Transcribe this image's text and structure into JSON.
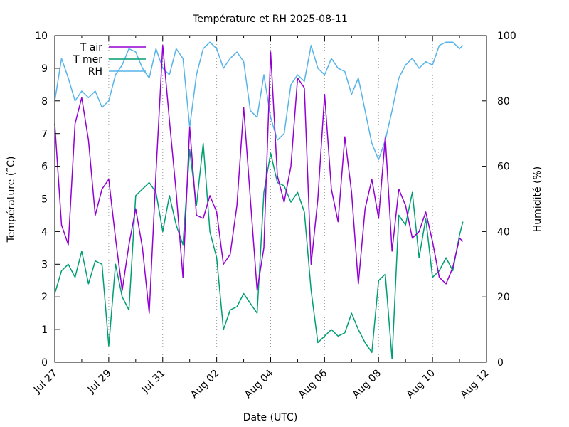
{
  "chart_data": {
    "type": "line",
    "title": "Température et RH 2025-08-11",
    "xlabel": "Date (UTC)",
    "ylabel": "Température (˜C)",
    "y2label": "Humidité (%)",
    "xlim": [
      "2025-07-27",
      "2025-08-12"
    ],
    "ylim": [
      0,
      10
    ],
    "y2lim": [
      0,
      100
    ],
    "grid": "vertical dotted lines at x ticks",
    "legend_placement": "top-left",
    "x_tick_labels": [
      "Jul 27",
      "Jul 29",
      "Jul 31",
      "Aug 02",
      "Aug 04",
      "Aug 06",
      "Aug 08",
      "Aug 10",
      "Aug 12"
    ],
    "y_tick_labels": [
      "0",
      "1",
      "2",
      "3",
      "4",
      "5",
      "6",
      "7",
      "8",
      "9",
      "10"
    ],
    "y2_tick_labels": [
      "0",
      "20",
      "40",
      "60",
      "80",
      "100"
    ],
    "series": [
      {
        "name": "T air",
        "axis": "left",
        "color": "#9400d3",
        "points": [
          [
            "2025-07-27 00:00",
            7.3
          ],
          [
            "2025-07-27 06:00",
            4.2
          ],
          [
            "2025-07-27 12:00",
            3.6
          ],
          [
            "2025-07-27 18:00",
            7.3
          ],
          [
            "2025-07-28 00:00",
            8.1
          ],
          [
            "2025-07-28 06:00",
            6.8
          ],
          [
            "2025-07-28 12:00",
            4.5
          ],
          [
            "2025-07-28 18:00",
            5.3
          ],
          [
            "2025-07-29 00:00",
            5.6
          ],
          [
            "2025-07-29 06:00",
            3.8
          ],
          [
            "2025-07-29 12:00",
            2.2
          ],
          [
            "2025-07-29 18:00",
            3.6
          ],
          [
            "2025-07-30 00:00",
            4.7
          ],
          [
            "2025-07-30 06:00",
            3.5
          ],
          [
            "2025-07-30 12:00",
            1.5
          ],
          [
            "2025-07-30 18:00",
            5.8
          ],
          [
            "2025-07-31 00:00",
            9.7
          ],
          [
            "2025-07-31 06:00",
            7.4
          ],
          [
            "2025-07-31 12:00",
            5.2
          ],
          [
            "2025-07-31 18:00",
            2.6
          ],
          [
            "2025-08-01 00:00",
            7.2
          ],
          [
            "2025-08-01 06:00",
            4.5
          ],
          [
            "2025-08-01 12:00",
            4.4
          ],
          [
            "2025-08-01 18:00",
            5.1
          ],
          [
            "2025-08-02 00:00",
            4.6
          ],
          [
            "2025-08-02 06:00",
            3.0
          ],
          [
            "2025-08-02 12:00",
            3.3
          ],
          [
            "2025-08-02 18:00",
            4.8
          ],
          [
            "2025-08-03 00:00",
            7.8
          ],
          [
            "2025-08-03 06:00",
            5.0
          ],
          [
            "2025-08-03 12:00",
            2.2
          ],
          [
            "2025-08-03 18:00",
            3.5
          ],
          [
            "2025-08-04 00:00",
            9.5
          ],
          [
            "2025-08-04 06:00",
            5.7
          ],
          [
            "2025-08-04 12:00",
            4.9
          ],
          [
            "2025-08-04 18:00",
            6.0
          ],
          [
            "2025-08-05 00:00",
            8.7
          ],
          [
            "2025-08-05 06:00",
            8.4
          ],
          [
            "2025-08-05 12:00",
            3.0
          ],
          [
            "2025-08-05 18:00",
            5.0
          ],
          [
            "2025-08-06 00:00",
            8.2
          ],
          [
            "2025-08-06 06:00",
            5.3
          ],
          [
            "2025-08-06 12:00",
            4.3
          ],
          [
            "2025-08-06 18:00",
            6.9
          ],
          [
            "2025-08-07 00:00",
            5.2
          ],
          [
            "2025-08-07 06:00",
            2.4
          ],
          [
            "2025-08-07 12:00",
            4.7
          ],
          [
            "2025-08-07 18:00",
            5.6
          ],
          [
            "2025-08-08 00:00",
            4.4
          ],
          [
            "2025-08-08 06:00",
            6.9
          ],
          [
            "2025-08-08 12:00",
            3.4
          ],
          [
            "2025-08-08 18:00",
            5.3
          ],
          [
            "2025-08-09 00:00",
            4.8
          ],
          [
            "2025-08-09 06:00",
            3.8
          ],
          [
            "2025-08-09 12:00",
            4.0
          ],
          [
            "2025-08-09 18:00",
            4.6
          ],
          [
            "2025-08-10 00:00",
            3.7
          ],
          [
            "2025-08-10 06:00",
            2.6
          ],
          [
            "2025-08-10 12:00",
            2.4
          ],
          [
            "2025-08-10 18:00",
            2.9
          ],
          [
            "2025-08-11 00:00",
            3.8
          ],
          [
            "2025-08-11 03:00",
            3.7
          ]
        ]
      },
      {
        "name": "T mer",
        "axis": "left",
        "color": "#009e73",
        "points": [
          [
            "2025-07-27 00:00",
            2.1
          ],
          [
            "2025-07-27 06:00",
            2.8
          ],
          [
            "2025-07-27 12:00",
            3.0
          ],
          [
            "2025-07-27 18:00",
            2.6
          ],
          [
            "2025-07-28 00:00",
            3.4
          ],
          [
            "2025-07-28 06:00",
            2.4
          ],
          [
            "2025-07-28 12:00",
            3.1
          ],
          [
            "2025-07-28 18:00",
            3.0
          ],
          [
            "2025-07-29 00:00",
            0.5
          ],
          [
            "2025-07-29 06:00",
            3.0
          ],
          [
            "2025-07-29 12:00",
            2.0
          ],
          [
            "2025-07-29 18:00",
            1.6
          ],
          [
            "2025-07-30 00:00",
            5.1
          ],
          [
            "2025-07-30 06:00",
            5.3
          ],
          [
            "2025-07-30 12:00",
            5.5
          ],
          [
            "2025-07-30 18:00",
            5.2
          ],
          [
            "2025-07-31 00:00",
            4.0
          ],
          [
            "2025-07-31 06:00",
            5.1
          ],
          [
            "2025-07-31 12:00",
            4.2
          ],
          [
            "2025-07-31 18:00",
            3.6
          ],
          [
            "2025-08-01 00:00",
            6.5
          ],
          [
            "2025-08-01 06:00",
            4.8
          ],
          [
            "2025-08-01 12:00",
            6.7
          ],
          [
            "2025-08-01 18:00",
            4.0
          ],
          [
            "2025-08-02 00:00",
            3.2
          ],
          [
            "2025-08-02 06:00",
            1.0
          ],
          [
            "2025-08-02 12:00",
            1.6
          ],
          [
            "2025-08-02 18:00",
            1.7
          ],
          [
            "2025-08-03 00:00",
            2.1
          ],
          [
            "2025-08-03 06:00",
            1.8
          ],
          [
            "2025-08-03 12:00",
            1.5
          ],
          [
            "2025-08-03 18:00",
            5.2
          ],
          [
            "2025-08-04 00:00",
            6.4
          ],
          [
            "2025-08-04 06:00",
            5.5
          ],
          [
            "2025-08-04 12:00",
            5.4
          ],
          [
            "2025-08-04 18:00",
            4.9
          ],
          [
            "2025-08-05 00:00",
            5.2
          ],
          [
            "2025-08-05 06:00",
            4.6
          ],
          [
            "2025-08-05 12:00",
            2.2
          ],
          [
            "2025-08-05 18:00",
            0.6
          ],
          [
            "2025-08-06 00:00",
            0.8
          ],
          [
            "2025-08-06 06:00",
            1.0
          ],
          [
            "2025-08-06 12:00",
            0.8
          ],
          [
            "2025-08-06 18:00",
            0.9
          ],
          [
            "2025-08-07 00:00",
            1.5
          ],
          [
            "2025-08-07 06:00",
            1.0
          ],
          [
            "2025-08-07 12:00",
            0.6
          ],
          [
            "2025-08-07 18:00",
            0.3
          ],
          [
            "2025-08-08 00:00",
            2.5
          ],
          [
            "2025-08-08 06:00",
            2.7
          ],
          [
            "2025-08-08 12:00",
            0.1
          ],
          [
            "2025-08-08 18:00",
            4.5
          ],
          [
            "2025-08-09 00:00",
            4.2
          ],
          [
            "2025-08-09 06:00",
            5.2
          ],
          [
            "2025-08-09 12:00",
            3.2
          ],
          [
            "2025-08-09 18:00",
            4.4
          ],
          [
            "2025-08-10 00:00",
            2.6
          ],
          [
            "2025-08-10 06:00",
            2.8
          ],
          [
            "2025-08-10 12:00",
            3.2
          ],
          [
            "2025-08-10 18:00",
            2.8
          ],
          [
            "2025-08-11 00:00",
            3.9
          ],
          [
            "2025-08-11 03:00",
            4.3
          ]
        ]
      },
      {
        "name": "RH",
        "axis": "right",
        "color": "#56b4e9",
        "points": [
          [
            "2025-07-27 00:00",
            80
          ],
          [
            "2025-07-27 06:00",
            93
          ],
          [
            "2025-07-27 12:00",
            87
          ],
          [
            "2025-07-27 18:00",
            80
          ],
          [
            "2025-07-28 00:00",
            83
          ],
          [
            "2025-07-28 06:00",
            81
          ],
          [
            "2025-07-28 12:00",
            83
          ],
          [
            "2025-07-28 18:00",
            78
          ],
          [
            "2025-07-29 00:00",
            80
          ],
          [
            "2025-07-29 06:00",
            88
          ],
          [
            "2025-07-29 12:00",
            91
          ],
          [
            "2025-07-29 18:00",
            96
          ],
          [
            "2025-07-30 00:00",
            95
          ],
          [
            "2025-07-30 06:00",
            90
          ],
          [
            "2025-07-30 12:00",
            87
          ],
          [
            "2025-07-30 18:00",
            96
          ],
          [
            "2025-07-31 00:00",
            90
          ],
          [
            "2025-07-31 06:00",
            88
          ],
          [
            "2025-07-31 12:00",
            96
          ],
          [
            "2025-07-31 18:00",
            93
          ],
          [
            "2025-08-01 00:00",
            72
          ],
          [
            "2025-08-01 06:00",
            88
          ],
          [
            "2025-08-01 12:00",
            96
          ],
          [
            "2025-08-01 18:00",
            98
          ],
          [
            "2025-08-02 00:00",
            96
          ],
          [
            "2025-08-02 06:00",
            90
          ],
          [
            "2025-08-02 12:00",
            93
          ],
          [
            "2025-08-02 18:00",
            95
          ],
          [
            "2025-08-03 00:00",
            92
          ],
          [
            "2025-08-03 06:00",
            77
          ],
          [
            "2025-08-03 12:00",
            75
          ],
          [
            "2025-08-03 18:00",
            88
          ],
          [
            "2025-08-04 00:00",
            75
          ],
          [
            "2025-08-04 06:00",
            68
          ],
          [
            "2025-08-04 12:00",
            70
          ],
          [
            "2025-08-04 18:00",
            85
          ],
          [
            "2025-08-05 00:00",
            88
          ],
          [
            "2025-08-05 06:00",
            86
          ],
          [
            "2025-08-05 12:00",
            97
          ],
          [
            "2025-08-05 18:00",
            90
          ],
          [
            "2025-08-06 00:00",
            88
          ],
          [
            "2025-08-06 06:00",
            93
          ],
          [
            "2025-08-06 12:00",
            90
          ],
          [
            "2025-08-06 18:00",
            89
          ],
          [
            "2025-08-07 00:00",
            82
          ],
          [
            "2025-08-07 06:00",
            87
          ],
          [
            "2025-08-07 12:00",
            77
          ],
          [
            "2025-08-07 18:00",
            67
          ],
          [
            "2025-08-08 00:00",
            62
          ],
          [
            "2025-08-08 06:00",
            68
          ],
          [
            "2025-08-08 12:00",
            77
          ],
          [
            "2025-08-08 18:00",
            87
          ],
          [
            "2025-08-09 00:00",
            91
          ],
          [
            "2025-08-09 06:00",
            93
          ],
          [
            "2025-08-09 12:00",
            90
          ],
          [
            "2025-08-09 18:00",
            92
          ],
          [
            "2025-08-10 00:00",
            91
          ],
          [
            "2025-08-10 06:00",
            97
          ],
          [
            "2025-08-10 12:00",
            98
          ],
          [
            "2025-08-10 18:00",
            98
          ],
          [
            "2025-08-11 00:00",
            96
          ],
          [
            "2025-08-11 03:00",
            97
          ]
        ]
      }
    ]
  }
}
